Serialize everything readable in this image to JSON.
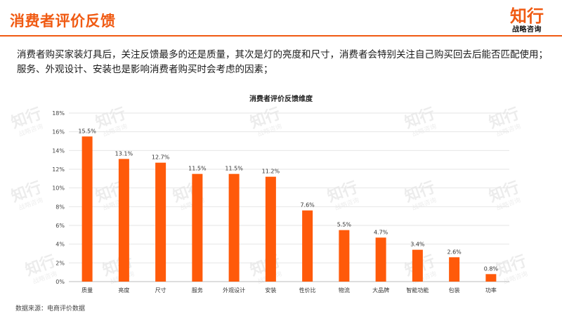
{
  "header": {
    "title": "消费者评价反馈",
    "logo_main": "知行",
    "logo_sub": "战略咨询"
  },
  "summary": "消费者购买家装灯具后，关注反馈最多的还是质量，其次是灯的亮度和尺寸，消费者会特别关注自己购买回去后能否匹配使用；服务、外观设计、安装也是影响消费者购买时会考虑的因素；",
  "source": "数据来源：电商评价数据",
  "watermark": {
    "main": "知行",
    "sub": "战略咨询"
  },
  "colors": {
    "accent": "#f05a12",
    "bar": "#ff5a0a",
    "grid": "#e6e6e6"
  },
  "chart_data": {
    "type": "bar",
    "title": "消费者评价反馈维度",
    "categories": [
      "质量",
      "亮度",
      "尺寸",
      "服务",
      "外观设计",
      "安装",
      "性价比",
      "物流",
      "大品牌",
      "智能功能",
      "包装",
      "功率"
    ],
    "values": [
      15.5,
      13.1,
      12.7,
      11.5,
      11.5,
      11.2,
      7.6,
      5.5,
      4.7,
      3.4,
      2.6,
      0.8
    ],
    "value_labels": [
      "15.5%",
      "13.1%",
      "12.7%",
      "11.5%",
      "11.5%",
      "11.2%",
      "7.6%",
      "5.5%",
      "4.7%",
      "3.4%",
      "2.6%",
      "0.8%"
    ],
    "ylim": [
      0,
      18
    ],
    "yticks": [
      0,
      2,
      4,
      6,
      8,
      10,
      12,
      14,
      16,
      18
    ],
    "ytick_labels": [
      "0%",
      "2%",
      "4%",
      "6%",
      "8%",
      "10%",
      "12%",
      "14%",
      "16%",
      "18%"
    ],
    "xlabel": "",
    "ylabel": "",
    "grid": true,
    "legend": "none"
  }
}
